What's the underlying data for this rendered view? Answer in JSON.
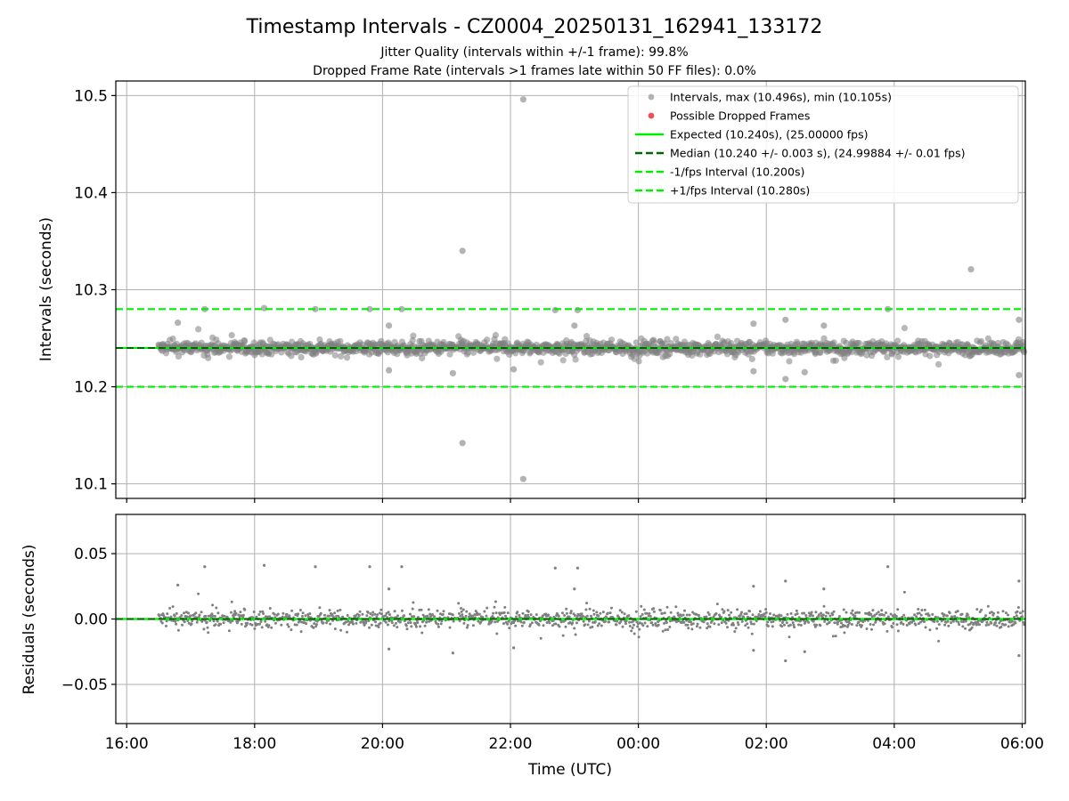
{
  "chart_data": {
    "type": "scatter",
    "title": "Timestamp Intervals - CZ0004_20250131_162941_133172",
    "subtitles": [
      "Jitter Quality (intervals within +/-1 frame): 99.8%",
      "Dropped Frame Rate (intervals >1 frames late within 50 FF files): 0.0%"
    ],
    "xlabel": "Time (UTC)",
    "x_tick_labels": [
      "16:00",
      "18:00",
      "20:00",
      "22:00",
      "00:00",
      "02:00",
      "04:00",
      "06:00"
    ],
    "x_range_hours": [
      15.83,
      30.05
    ],
    "grid": true,
    "colors": {
      "points": "#808080",
      "dropped": "#f05050",
      "bright_green": "#00ee00",
      "dark_green": "#006400"
    },
    "top_panel": {
      "ylabel": "Intervals (seconds)",
      "ylim": [
        10.085,
        10.515
      ],
      "y_ticks": [
        10.1,
        10.2,
        10.3,
        10.4,
        10.5
      ],
      "y_tick_labels": [
        "10.1",
        "10.2",
        "10.3",
        "10.4",
        "10.5"
      ],
      "expected": 10.24,
      "median": 10.24,
      "lower_interval": 10.2,
      "upper_interval": 10.28,
      "data_start_hour": 16.5,
      "data_end_hour": 30.05,
      "typical_spread": 0.006,
      "outliers": [
        {
          "x": 22.2,
          "y": 10.496
        },
        {
          "x": 22.2,
          "y": 10.105
        },
        {
          "x": 21.25,
          "y": 10.34
        },
        {
          "x": 21.25,
          "y": 10.142
        },
        {
          "x": 29.2,
          "y": 10.321
        },
        {
          "x": 17.22,
          "y": 10.28
        },
        {
          "x": 18.15,
          "y": 10.281
        },
        {
          "x": 18.95,
          "y": 10.28
        },
        {
          "x": 19.8,
          "y": 10.28
        },
        {
          "x": 20.3,
          "y": 10.28
        },
        {
          "x": 22.7,
          "y": 10.279
        },
        {
          "x": 23.05,
          "y": 10.279
        },
        {
          "x": 27.9,
          "y": 10.28
        },
        {
          "x": 20.1,
          "y": 10.217
        },
        {
          "x": 21.1,
          "y": 10.214
        },
        {
          "x": 22.05,
          "y": 10.218
        },
        {
          "x": 26.3,
          "y": 10.208
        },
        {
          "x": 26.6,
          "y": 10.215
        },
        {
          "x": 25.8,
          "y": 10.216
        },
        {
          "x": 26.3,
          "y": 10.269
        },
        {
          "x": 26.9,
          "y": 10.263
        },
        {
          "x": 25.8,
          "y": 10.265
        },
        {
          "x": 29.95,
          "y": 10.212
        },
        {
          "x": 29.95,
          "y": 10.269
        },
        {
          "x": 16.8,
          "y": 10.266
        },
        {
          "x": 20.1,
          "y": 10.263
        },
        {
          "x": 23.0,
          "y": 10.263
        }
      ],
      "legend": [
        {
          "label": "Intervals, max (10.496s), min (10.105s)",
          "kind": "point-gray"
        },
        {
          "label": "Possible Dropped Frames",
          "kind": "point-red"
        },
        {
          "label": "Expected (10.240s), (25.00000 fps)",
          "kind": "line-solid-bright"
        },
        {
          "label": "Median (10.240 +/- 0.003 s), (24.99884 +/- 0.01 fps)",
          "kind": "line-dash-dark"
        },
        {
          "label": "-1/fps Interval (10.200s)",
          "kind": "line-dash-bright"
        },
        {
          "label": "+1/fps Interval (10.280s)",
          "kind": "line-dash-bright"
        }
      ]
    },
    "bottom_panel": {
      "ylabel": "Residuals (seconds)",
      "ylim": [
        -0.08,
        0.08
      ],
      "y_ticks": [
        0.05,
        0.0,
        -0.05
      ],
      "y_tick_labels": [
        "0.05",
        "0.00",
        "−0.05"
      ],
      "zero_line": 0.0
    }
  }
}
